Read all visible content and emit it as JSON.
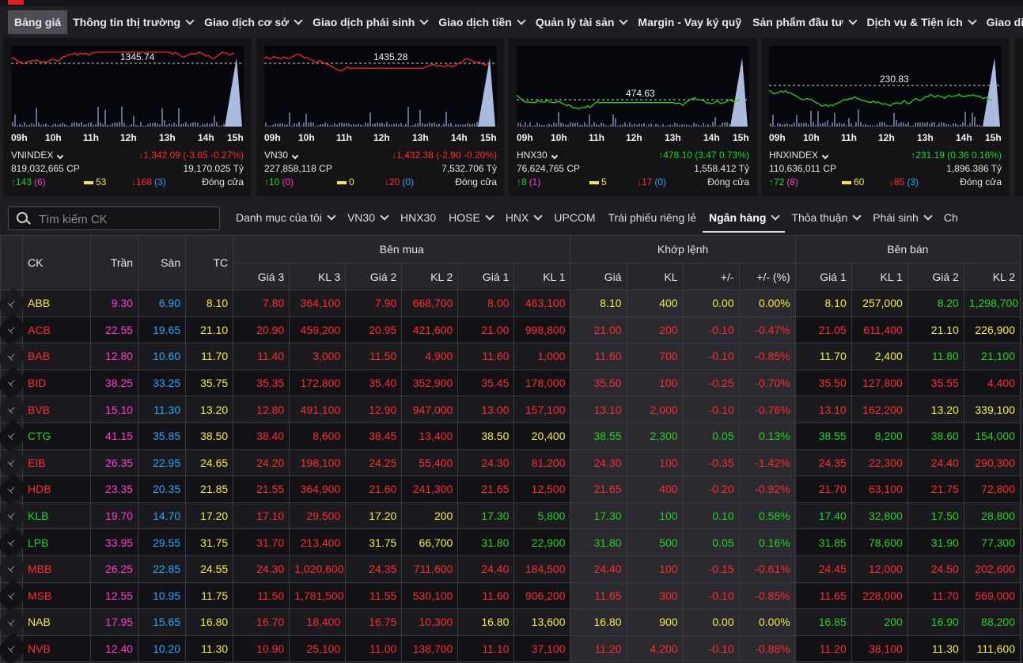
{
  "menu": [
    {
      "label": "Bảng giá",
      "active": true,
      "dropdown": false
    },
    {
      "label": "Thông tin thị trường",
      "dropdown": true
    },
    {
      "label": "Giao dịch cơ sở",
      "dropdown": true
    },
    {
      "label": "Giao dịch phái sinh",
      "dropdown": true
    },
    {
      "label": "Giao dịch tiền",
      "dropdown": true
    },
    {
      "label": "Quản lý tài sản",
      "dropdown": true
    },
    {
      "label": "Margin - Vay ký quỹ",
      "dropdown": false
    },
    {
      "label": "Sản phẩm đầu tư",
      "dropdown": true
    },
    {
      "label": "Dịch vụ & Tiện ích",
      "dropdown": true
    },
    {
      "label": "Giao diện",
      "dropdown": false
    }
  ],
  "indices": [
    {
      "name": "VNINDEX",
      "ref_label": "1345.74",
      "change": "↓1,342.09 (-3.65 -0.27%)",
      "dir": "down",
      "volume": "819,032,665 CP",
      "value": "19,170.025 Tỷ",
      "up": "↑143",
      "ceil": "(6)",
      "unchanged": "53",
      "down": "↓168",
      "floor": "(3)",
      "status": "Đóng cửa",
      "line_color": "#ff2020"
    },
    {
      "name": "VN30",
      "ref_label": "1435.28",
      "change": "↓1,432.38 (-2.90 -0.20%)",
      "dir": "down",
      "volume": "227,858,118 CP",
      "value": "7,532.706 Tỷ",
      "up": "↑10",
      "ceil": "(0)",
      "unchanged": "0",
      "down": "↓20",
      "floor": "(0)",
      "status": "Đóng cửa",
      "line_color": "#ff2020"
    },
    {
      "name": "HNX30",
      "ref_label": "474.63",
      "change": "↑478.10 (3.47 0.73%)",
      "dir": "up",
      "volume": "76,624,765 CP",
      "value": "1,558.412 Tỷ",
      "up": "↑8",
      "ceil": "(1)",
      "unchanged": "5",
      "down": "↓17",
      "floor": "(0)",
      "status": "Đóng cửa",
      "line_color": "#1fd51f"
    },
    {
      "name": "HNXINDEX",
      "ref_label": "230.83",
      "change": "↑231.19 (0.36 0.16%)",
      "dir": "up",
      "volume": "110,636,011 CP",
      "value": "1,896.386 Tỷ",
      "up": "↑72",
      "ceil": "(8)",
      "unchanged": "60",
      "down": "↓85",
      "floor": "(3)",
      "status": "Đóng cửa",
      "line_color": "#1fd51f"
    }
  ],
  "time_labels": [
    "09h",
    "10h",
    "11h",
    "12h",
    "13h",
    "14h",
    "15h"
  ],
  "search": {
    "placeholder": "Tìm kiếm CK"
  },
  "tabs": [
    {
      "label": "Danh mục của tôi",
      "dropdown": true
    },
    {
      "label": "VN30",
      "dropdown": true
    },
    {
      "label": "HNX30",
      "dropdown": false
    },
    {
      "label": "HOSE",
      "dropdown": true
    },
    {
      "label": "HNX",
      "dropdown": true
    },
    {
      "label": "UPCOM",
      "dropdown": false
    },
    {
      "label": "Trái phiếu riêng lẻ",
      "dropdown": false
    },
    {
      "label": "Ngân hàng",
      "dropdown": true,
      "active": true
    },
    {
      "label": "Thỏa thuận",
      "dropdown": true
    },
    {
      "label": "Phái sinh",
      "dropdown": true
    },
    {
      "label": "Ch",
      "dropdown": false
    }
  ],
  "table": {
    "headers": {
      "ck": "CK",
      "tran": "Trần",
      "san": "Sàn",
      "tc": "TC",
      "ben_mua": "Bên mua",
      "khop_lenh": "Khớp lệnh",
      "ben_ban": "Bên bán"
    },
    "sub_headers": [
      "Giá 3",
      "KL 3",
      "Giá 2",
      "KL 2",
      "Giá 1",
      "KL 1",
      "Giá",
      "KL",
      "+/-",
      "+/- (%)",
      "Giá 1",
      "KL 1",
      "Giá 2",
      "KL 2"
    ],
    "rows": [
      {
        "sym": "ABB",
        "tran": "9.30",
        "san": "6.90",
        "tc": "8.10",
        "b3": "7.80",
        "bk3": "364,100",
        "b2": "7.90",
        "bk2": "668,700",
        "b1": "8.00",
        "bk1": "463,100",
        "p": "8.10",
        "kl": "400",
        "ch": "0.00",
        "pct": "0.00%",
        "s1": "8.10",
        "sk1": "257,000",
        "s2": "8.20",
        "sk2": "1,298,700"
      },
      {
        "sym": "ACB",
        "tran": "22.55",
        "san": "19.65",
        "tc": "21.10",
        "b3": "20.90",
        "bk3": "459,200",
        "b2": "20.95",
        "bk2": "421,600",
        "b1": "21.00",
        "bk1": "998,800",
        "p": "21.00",
        "kl": "200",
        "ch": "-0.10",
        "pct": "-0.47%",
        "s1": "21.05",
        "sk1": "611,400",
        "s2": "21.10",
        "sk2": "226,900"
      },
      {
        "sym": "BAB",
        "tran": "12.80",
        "san": "10.60",
        "tc": "11.70",
        "b3": "11.40",
        "bk3": "3,000",
        "b2": "11.50",
        "bk2": "4,900",
        "b1": "11.60",
        "bk1": "1,000",
        "p": "11.60",
        "kl": "700",
        "ch": "-0.10",
        "pct": "-0.85%",
        "s1": "11.70",
        "sk1": "2,400",
        "s2": "11.80",
        "sk2": "21,100"
      },
      {
        "sym": "BID",
        "tran": "38.25",
        "san": "33.25",
        "tc": "35.75",
        "b3": "35.35",
        "bk3": "172,800",
        "b2": "35.40",
        "bk2": "352,900",
        "b1": "35.45",
        "bk1": "178,000",
        "p": "35.50",
        "kl": "100",
        "ch": "-0.25",
        "pct": "-0.70%",
        "s1": "35.50",
        "sk1": "127,800",
        "s2": "35.55",
        "sk2": "4,400"
      },
      {
        "sym": "BVB",
        "tran": "15.10",
        "san": "11.30",
        "tc": "13.20",
        "b3": "12.80",
        "bk3": "491,100",
        "b2": "12.90",
        "bk2": "947,000",
        "b1": "13.00",
        "bk1": "157,100",
        "p": "13.10",
        "kl": "2,000",
        "ch": "-0.10",
        "pct": "-0.76%",
        "s1": "13.10",
        "sk1": "162,200",
        "s2": "13.20",
        "sk2": "339,100"
      },
      {
        "sym": "CTG",
        "tran": "41.15",
        "san": "35.85",
        "tc": "38.50",
        "b3": "38.40",
        "bk3": "8,600",
        "b2": "38.45",
        "bk2": "13,400",
        "b1": "38.50",
        "bk1": "20,400",
        "p": "38.55",
        "kl": "2,300",
        "ch": "0.05",
        "pct": "0.13%",
        "s1": "38.55",
        "sk1": "8,200",
        "s2": "38.60",
        "sk2": "154,000"
      },
      {
        "sym": "EIB",
        "tran": "26.35",
        "san": "22.95",
        "tc": "24.65",
        "b3": "24.20",
        "bk3": "198,100",
        "b2": "24.25",
        "bk2": "55,400",
        "b1": "24.30",
        "bk1": "81,200",
        "p": "24.30",
        "kl": "100",
        "ch": "-0.35",
        "pct": "-1.42%",
        "s1": "24.35",
        "sk1": "22,300",
        "s2": "24.40",
        "sk2": "290,300"
      },
      {
        "sym": "HDB",
        "tran": "23.35",
        "san": "20.35",
        "tc": "21.85",
        "b3": "21.55",
        "bk3": "364,900",
        "b2": "21.60",
        "bk2": "241,300",
        "b1": "21.65",
        "bk1": "12,500",
        "p": "21.65",
        "kl": "400",
        "ch": "-0.20",
        "pct": "-0.92%",
        "s1": "21.70",
        "sk1": "63,100",
        "s2": "21.75",
        "sk2": "72,800"
      },
      {
        "sym": "KLB",
        "tran": "19.70",
        "san": "14.70",
        "tc": "17.20",
        "b3": "17.10",
        "bk3": "29,500",
        "b2": "17.20",
        "bk2": "200",
        "b1": "17.30",
        "bk1": "5,800",
        "p": "17.30",
        "kl": "100",
        "ch": "0.10",
        "pct": "0.58%",
        "s1": "17.40",
        "sk1": "32,800",
        "s2": "17.50",
        "sk2": "28,800"
      },
      {
        "sym": "LPB",
        "tran": "33.95",
        "san": "29.55",
        "tc": "31.75",
        "b3": "31.70",
        "bk3": "213,400",
        "b2": "31.75",
        "bk2": "66,700",
        "b1": "31.80",
        "bk1": "22,900",
        "p": "31.80",
        "kl": "500",
        "ch": "0.05",
        "pct": "0.16%",
        "s1": "31.85",
        "sk1": "78,600",
        "s2": "31.90",
        "sk2": "77,300"
      },
      {
        "sym": "MBB",
        "tran": "26.25",
        "san": "22.85",
        "tc": "24.55",
        "b3": "24.30",
        "bk3": "1,020,600",
        "b2": "24.35",
        "bk2": "711,600",
        "b1": "24.40",
        "bk1": "184,500",
        "p": "24.40",
        "kl": "100",
        "ch": "-0.15",
        "pct": "-0.61%",
        "s1": "24.45",
        "sk1": "12,000",
        "s2": "24.50",
        "sk2": "202,600"
      },
      {
        "sym": "MSB",
        "tran": "12.55",
        "san": "10.95",
        "tc": "11.75",
        "b3": "11.50",
        "bk3": "1,781,500",
        "b2": "11.55",
        "bk2": "530,100",
        "b1": "11.60",
        "bk1": "906,200",
        "p": "11.65",
        "kl": "300",
        "ch": "-0.10",
        "pct": "-0.85%",
        "s1": "11.65",
        "sk1": "228,000",
        "s2": "11.70",
        "sk2": "569,000"
      },
      {
        "sym": "NAB",
        "tran": "17.95",
        "san": "15.65",
        "tc": "16.80",
        "b3": "16.70",
        "bk3": "18,400",
        "b2": "16.75",
        "bk2": "10,300",
        "b1": "16.80",
        "bk1": "13,600",
        "p": "16.80",
        "kl": "900",
        "ch": "0.00",
        "pct": "0.00%",
        "s1": "16.85",
        "sk1": "200",
        "s2": "16.90",
        "sk2": "88,200"
      },
      {
        "sym": "NVB",
        "tran": "12.40",
        "san": "10.20",
        "tc": "11.30",
        "b3": "10.90",
        "bk3": "25,100",
        "b2": "11.00",
        "bk2": "138,700",
        "b1": "11.10",
        "bk1": "37,100",
        "p": "11.20",
        "kl": "4,200",
        "ch": "-0.10",
        "pct": "-0.88%",
        "s1": "11.20",
        "sk1": "38,100",
        "s2": "11.30",
        "sk2": "111,600"
      }
    ]
  },
  "colors": {
    "up": "#1fd51f",
    "down": "#ff2b2b",
    "ref": "#f5ea3b",
    "ceil": "#ff3ad1",
    "floor": "#22a8f5"
  }
}
